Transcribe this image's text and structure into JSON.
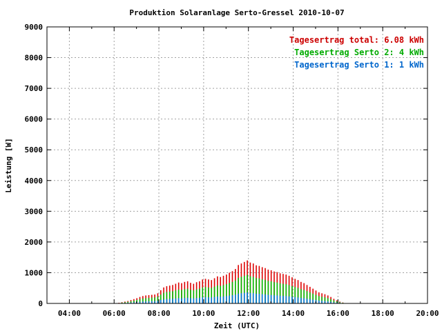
{
  "chart_data": {
    "type": "bar",
    "title": "Produktion Solaranlage Serto-Gressel 2010-10-07",
    "xlabel": "Zeit (UTC)",
    "ylabel": "Leistung [W]",
    "xlim_hours": [
      3.0,
      20.0
    ],
    "ylim": [
      0,
      9000
    ],
    "x_ticks": [
      "04:00",
      "06:00",
      "08:00",
      "10:00",
      "12:00",
      "14:00",
      "16:00",
      "18:00",
      "20:00"
    ],
    "x_tick_hours": [
      4,
      6,
      8,
      10,
      12,
      14,
      16,
      18,
      20
    ],
    "y_ticks": [
      "0",
      "1000",
      "2000",
      "3000",
      "4000",
      "5000",
      "6000",
      "7000",
      "8000",
      "9000"
    ],
    "y_tick_values": [
      0,
      1000,
      2000,
      3000,
      4000,
      5000,
      6000,
      7000,
      8000,
      9000
    ],
    "grid": true,
    "legend_position": "top-right",
    "legend": [
      {
        "label": "Tagesertrag total:",
        "value": "6.08 kWh",
        "color": "#cc0000"
      },
      {
        "label": "Tagesertrag Serto 2:",
        "value": "4 kWh",
        "color": "#00aa00"
      },
      {
        "label": "Tagesertrag Serto 1:",
        "value": "1 kWh",
        "color": "#0066cc"
      }
    ],
    "colors": {
      "total": "#dd0000",
      "serto2": "#00bb00",
      "serto1": "#0077dd"
    },
    "time": [
      "06:05",
      "06:13",
      "06:21",
      "06:29",
      "06:37",
      "06:45",
      "06:53",
      "07:01",
      "07:09",
      "07:17",
      "07:25",
      "07:33",
      "07:41",
      "07:49",
      "07:57",
      "08:05",
      "08:13",
      "08:21",
      "08:29",
      "08:37",
      "08:45",
      "08:53",
      "09:01",
      "09:09",
      "09:17",
      "09:25",
      "09:33",
      "09:41",
      "09:49",
      "09:57",
      "10:05",
      "10:13",
      "10:21",
      "10:29",
      "10:37",
      "10:45",
      "10:53",
      "11:01",
      "11:09",
      "11:17",
      "11:25",
      "11:33",
      "11:41",
      "11:49",
      "11:57",
      "12:05",
      "12:13",
      "12:21",
      "12:29",
      "12:37",
      "12:45",
      "12:53",
      "13:01",
      "13:09",
      "13:17",
      "13:25",
      "13:33",
      "13:41",
      "13:49",
      "13:57",
      "14:05",
      "14:13",
      "14:21",
      "14:29",
      "14:37",
      "14:45",
      "14:53",
      "15:01",
      "15:09",
      "15:17",
      "15:25",
      "15:33",
      "15:41",
      "15:49",
      "15:57",
      "16:05",
      "16:13",
      "16:21"
    ],
    "series": [
      {
        "name": "Tagesertrag total",
        "values": [
          10,
          20,
          40,
          60,
          80,
          110,
          140,
          170,
          210,
          240,
          260,
          270,
          280,
          290,
          330,
          430,
          520,
          560,
          580,
          600,
          640,
          680,
          660,
          700,
          720,
          670,
          640,
          690,
          720,
          780,
          800,
          780,
          760,
          820,
          880,
          860,
          900,
          940,
          1000,
          1050,
          1120,
          1250,
          1300,
          1350,
          1400,
          1330,
          1300,
          1240,
          1220,
          1180,
          1150,
          1100,
          1080,
          1040,
          1020,
          980,
          960,
          940,
          900,
          850,
          800,
          760,
          700,
          660,
          600,
          540,
          480,
          420,
          360,
          330,
          300,
          260,
          210,
          150,
          100,
          60,
          30,
          10
        ]
      },
      {
        "name": "Tagesertrag Serto 2",
        "values": [
          5,
          12,
          25,
          38,
          52,
          72,
          92,
          112,
          140,
          160,
          175,
          180,
          188,
          195,
          222,
          285,
          345,
          372,
          385,
          398,
          425,
          452,
          440,
          465,
          478,
          445,
          425,
          458,
          478,
          518,
          532,
          518,
          505,
          545,
          585,
          572,
          598,
          625,
          665,
          700,
          745,
          832,
          865,
          898,
          932,
          885,
          865,
          825,
          812,
          785,
          765,
          732,
          718,
          692,
          678,
          652,
          638,
          625,
          598,
          565,
          532,
          505,
          465,
          438,
          398,
          358,
          318,
          278,
          238,
          218,
          198,
          172,
          138,
          98,
          65,
          40,
          20,
          6
        ]
      },
      {
        "name": "Tagesertrag Serto 1",
        "values": [
          2,
          5,
          10,
          15,
          20,
          28,
          36,
          43,
          53,
          61,
          66,
          69,
          71,
          74,
          84,
          110,
          132,
          143,
          148,
          153,
          163,
          173,
          168,
          179,
          184,
          171,
          163,
          176,
          184,
          199,
          204,
          199,
          194,
          209,
          225,
          219,
          230,
          240,
          255,
          268,
          286,
          319,
          332,
          344,
          357,
          339,
          332,
          316,
          311,
          301,
          293,
          281,
          275,
          265,
          260,
          250,
          245,
          240,
          230,
          217,
          204,
          194,
          179,
          168,
          153,
          138,
          122,
          107,
          92,
          84,
          77,
          66,
          54,
          38,
          26,
          15,
          8,
          3
        ]
      }
    ]
  }
}
